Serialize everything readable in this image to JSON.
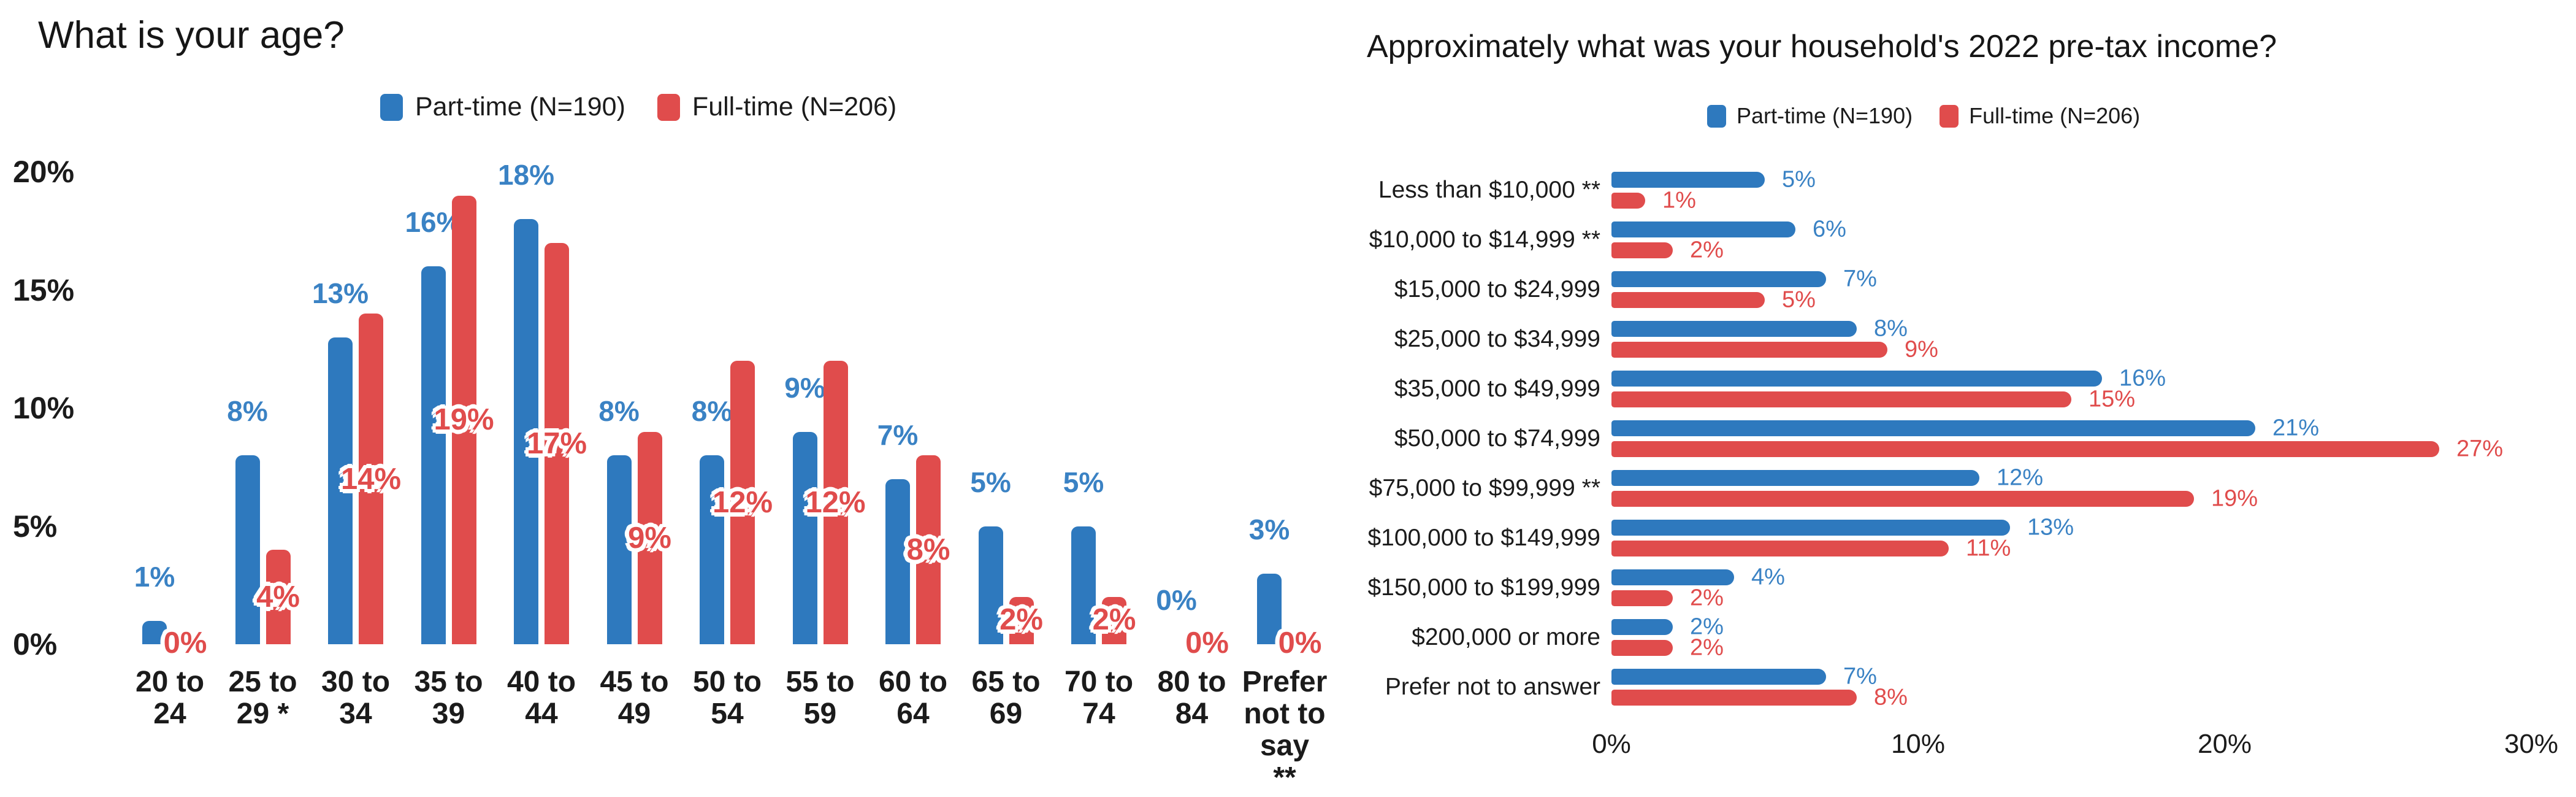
{
  "chart_data": [
    {
      "type": "bar",
      "orientation": "vertical",
      "title": "What is your age?",
      "value_suffix": "%",
      "categories": [
        "20 to 24",
        "25 to 29 *",
        "30 to 34",
        "35 to 39",
        "40 to 44",
        "45 to 49",
        "50 to 54",
        "55 to 59",
        "60 to 64",
        "65 to 69",
        "70 to 74",
        "80 to 84",
        "Prefer not to say **"
      ],
      "category_display_lines": [
        "20 to\n24",
        "25 to\n29 *",
        "30 to\n34",
        "35 to\n39",
        "40 to\n44",
        "45 to\n49",
        "50 to\n54",
        "55 to\n59",
        "60 to\n64",
        "65 to\n69",
        "70 to\n74",
        "80 to\n84",
        "Prefer\nnot to\nsay\n**"
      ],
      "series": [
        {
          "name": "Part-time (N=190)",
          "color": "#2E79BE",
          "label_color": "#3A82C4",
          "values": [
            1,
            8,
            13,
            16,
            18,
            8,
            8,
            9,
            7,
            5,
            5,
            0,
            3
          ]
        },
        {
          "name": "Full-time (N=206)",
          "color": "#E04C4C",
          "label_color": "#E04C4C",
          "values": [
            0,
            4,
            14,
            19,
            17,
            9,
            12,
            12,
            8,
            2,
            2,
            0,
            0
          ]
        }
      ],
      "y_ticks": [
        "0%",
        "5%",
        "10%",
        "15%",
        "20%"
      ],
      "ylim": [
        0,
        20
      ],
      "grid": false,
      "legend_position": "top"
    },
    {
      "type": "bar",
      "orientation": "horizontal",
      "title": "Approximately what was your household's 2022 pre-tax income?",
      "value_suffix": "%",
      "categories": [
        "Less than $10,000 **",
        "$10,000 to $14,999 **",
        "$15,000 to $24,999",
        "$25,000 to $34,999",
        "$35,000 to $49,999",
        "$50,000 to $74,999",
        "$75,000 to $99,999 **",
        "$100,000 to $149,999",
        "$150,000 to $199,999",
        "$200,000 or more",
        "Prefer not to answer"
      ],
      "series": [
        {
          "name": "Part-time (N=190)",
          "color": "#2E79BE",
          "label_color": "#3A82C4",
          "values": [
            5,
            6,
            7,
            8,
            16,
            21,
            12,
            13,
            4,
            2,
            7
          ]
        },
        {
          "name": "Full-time (N=206)",
          "color": "#E04C4C",
          "label_color": "#E04C4C",
          "values": [
            1,
            2,
            5,
            9,
            15,
            27,
            19,
            11,
            2,
            2,
            8
          ]
        }
      ],
      "x_ticks": [
        "0%",
        "10%",
        "20%",
        "30%"
      ],
      "xlim": [
        0,
        30
      ],
      "grid": false,
      "legend_position": "top"
    }
  ]
}
